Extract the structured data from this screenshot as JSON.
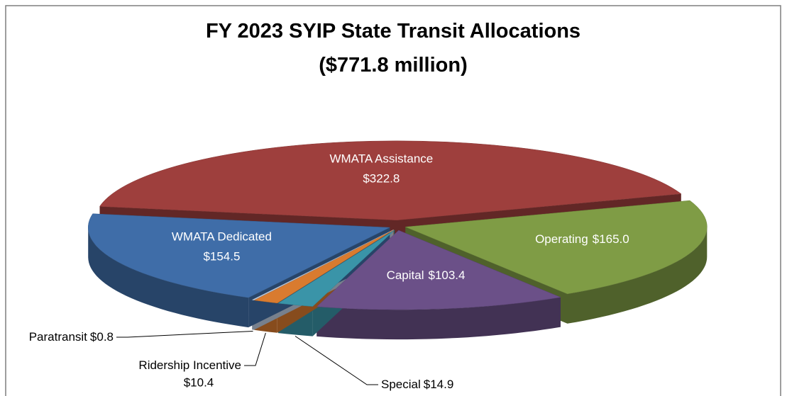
{
  "chart_data": {
    "type": "pie",
    "title": "FY 2023 SYIP State Transit Allocations",
    "subtitle": "($771.8 million)",
    "categories": [
      "WMATA Assistance",
      "Operating",
      "Capital",
      "Special",
      "Ridership Incentive",
      "Paratransit",
      "WMATA Dedicated"
    ],
    "values": [
      322.8,
      165.0,
      103.4,
      14.9,
      10.4,
      0.8,
      154.5
    ],
    "value_labels": [
      "$322.8",
      "$165.0",
      "$103.4",
      "$14.9",
      "$10.4",
      "$0.8",
      "$154.5"
    ],
    "colors": [
      "#9e3f3d",
      "#7f9c45",
      "#6b5088",
      "#3a94a8",
      "#d97b2f",
      "#c0cfe3",
      "#3f6da8"
    ]
  }
}
